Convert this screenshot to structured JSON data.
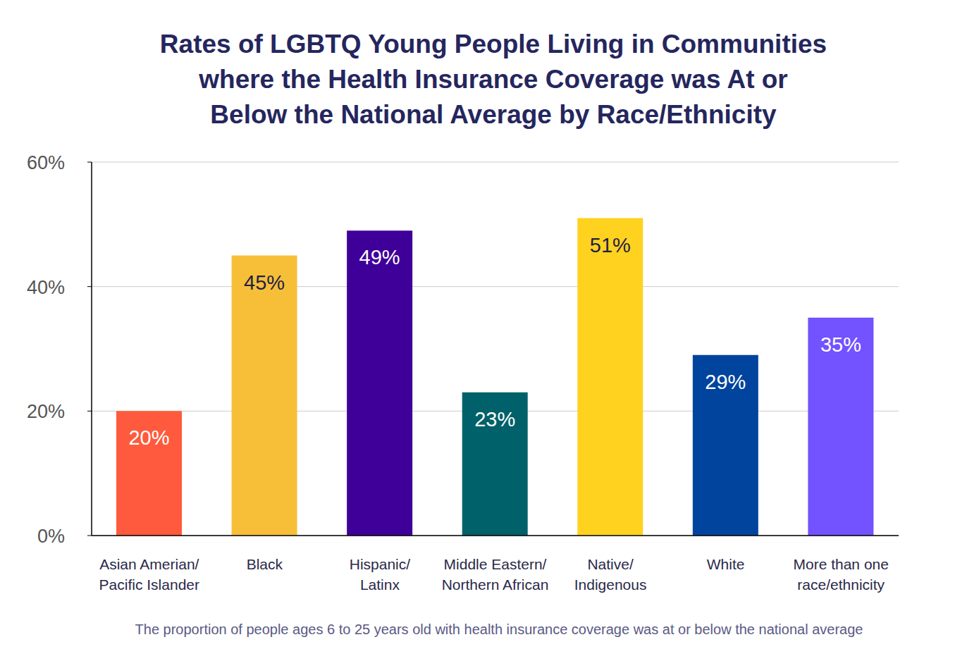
{
  "chart_data": {
    "type": "bar",
    "title": "Rates of LGBTQ Young People Living in Communities\nwhere the Health Insurance Coverage was At or\nBelow the National Average by Race/Ethnicity",
    "caption": "The proportion of people ages 6 to 25 years old with health insurance coverage was at or below the national average",
    "categories": [
      "Asian Amerian/\nPacific Islander",
      "Black",
      "Hispanic/\nLatinx",
      "Middle Eastern/\nNorthern African",
      "Native/\nIndigenous",
      "White",
      "More than one\nrace/ethnicity"
    ],
    "values": [
      20,
      45,
      49,
      23,
      51,
      29,
      35
    ],
    "value_labels": [
      "20%",
      "45%",
      "49%",
      "23%",
      "51%",
      "29%",
      "35%"
    ],
    "colors": [
      "#FF5A3D",
      "#F7BF38",
      "#3F0099",
      "#00616A",
      "#FFD21F",
      "#00449E",
      "#7352FF"
    ],
    "ylim": [
      0,
      60
    ],
    "yticks": [
      {
        "value": 0,
        "label": "0%"
      },
      {
        "value": 20,
        "label": "20%"
      },
      {
        "value": 40,
        "label": "40%"
      },
      {
        "value": 60,
        "label": "60%"
      }
    ],
    "grid": true,
    "data_labels": true
  }
}
